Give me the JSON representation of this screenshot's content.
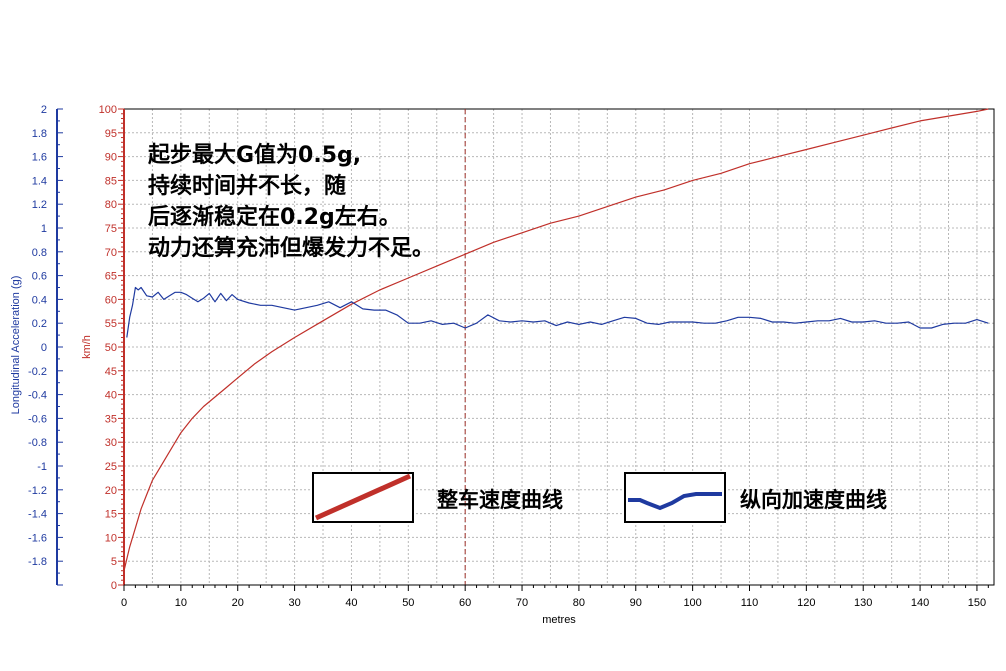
{
  "chart_data": {
    "type": "line",
    "xlabel": "metres",
    "y_left_label": "Longitudinal Acceleration (g)",
    "y_right_label": "km/h",
    "xlim": [
      0,
      153
    ],
    "x_ticks": [
      0,
      10,
      20,
      30,
      40,
      50,
      60,
      70,
      80,
      90,
      100,
      110,
      120,
      130,
      140,
      150
    ],
    "accel_lim": [
      -2,
      2
    ],
    "accel_ticks": [
      "2",
      "1.8",
      "1.6",
      "1.4",
      "1.2",
      "1",
      "0.8",
      "0.6",
      "0.4",
      "0.2",
      "0",
      "-0.2",
      "-0.4",
      "-0.6",
      "-0.8",
      "-1",
      "-1.2",
      "-1.4",
      "-1.6",
      "-1.8"
    ],
    "speed_lim": [
      0,
      100
    ],
    "speed_ticks": [
      "100",
      "95",
      "90",
      "85",
      "80",
      "75",
      "70",
      "65",
      "60",
      "55",
      "50",
      "45",
      "40",
      "35",
      "30",
      "25",
      "20",
      "15",
      "10",
      "5",
      "0"
    ],
    "grid": true,
    "marker_x": 60,
    "annotation": [
      "起步最大G值为0.5g,",
      "持续时间并不长，随",
      "后逐渐稳定在0.2g左右。",
      "动力还算充沛但爆发力不足。"
    ],
    "series": [
      {
        "name": "整车速度曲线",
        "color": "#c0302a",
        "axis": "speed",
        "x": [
          0,
          1,
          2,
          3,
          4,
          5,
          6,
          8,
          10,
          12,
          14,
          16,
          18,
          20,
          23,
          26,
          30,
          35,
          40,
          45,
          50,
          55,
          60,
          65,
          70,
          75,
          80,
          85,
          90,
          95,
          100,
          105,
          110,
          115,
          120,
          125,
          130,
          135,
          140,
          145,
          150,
          152
        ],
        "values": [
          3,
          8,
          12,
          16,
          19,
          22,
          24,
          28,
          32,
          35,
          37.5,
          39.5,
          41.5,
          43.5,
          46.5,
          49,
          52,
          55.5,
          59,
          62,
          64.5,
          67,
          69.5,
          72,
          74,
          76,
          77.5,
          79.5,
          81.5,
          83,
          85,
          86.5,
          88.5,
          90,
          91.5,
          93,
          94.5,
          96,
          97.5,
          98.5,
          99.5,
          100
        ]
      },
      {
        "name": "纵向加速度曲线",
        "color": "#1f3aa0",
        "axis": "accel",
        "x": [
          0.5,
          1,
          1.5,
          2,
          2.5,
          3,
          4,
          5,
          6,
          7,
          8,
          9,
          10,
          11,
          12,
          13,
          14,
          15,
          16,
          17,
          18,
          19,
          20,
          22,
          24,
          26,
          28,
          30,
          32,
          34,
          36,
          38,
          40,
          42,
          44,
          46,
          48,
          50,
          52,
          54,
          56,
          58,
          60,
          62,
          64,
          66,
          68,
          70,
          72,
          74,
          76,
          78,
          80,
          82,
          84,
          86,
          88,
          90,
          92,
          94,
          96,
          98,
          100,
          102,
          104,
          106,
          108,
          110,
          112,
          114,
          116,
          118,
          120,
          122,
          124,
          126,
          128,
          130,
          132,
          134,
          136,
          138,
          140,
          142,
          144,
          146,
          148,
          150,
          152
        ],
        "values": [
          0.08,
          0.25,
          0.35,
          0.5,
          0.48,
          0.5,
          0.43,
          0.42,
          0.46,
          0.4,
          0.43,
          0.46,
          0.46,
          0.44,
          0.41,
          0.38,
          0.41,
          0.45,
          0.38,
          0.45,
          0.39,
          0.44,
          0.4,
          0.37,
          0.35,
          0.35,
          0.33,
          0.31,
          0.33,
          0.35,
          0.38,
          0.33,
          0.38,
          0.32,
          0.31,
          0.31,
          0.27,
          0.2,
          0.2,
          0.22,
          0.19,
          0.2,
          0.16,
          0.2,
          0.27,
          0.22,
          0.21,
          0.22,
          0.21,
          0.22,
          0.18,
          0.21,
          0.19,
          0.21,
          0.19,
          0.22,
          0.25,
          0.24,
          0.2,
          0.19,
          0.21,
          0.21,
          0.21,
          0.2,
          0.2,
          0.22,
          0.25,
          0.25,
          0.24,
          0.21,
          0.21,
          0.2,
          0.21,
          0.22,
          0.22,
          0.24,
          0.21,
          0.21,
          0.22,
          0.2,
          0.2,
          0.21,
          0.16,
          0.16,
          0.19,
          0.2,
          0.2,
          0.23,
          0.2
        ]
      }
    ]
  }
}
